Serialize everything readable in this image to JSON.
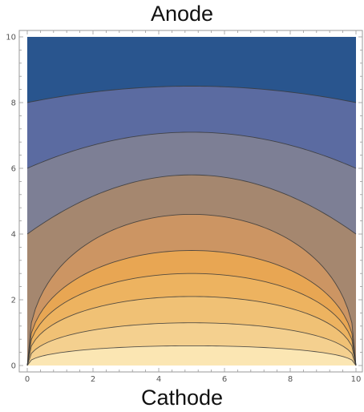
{
  "chart_data": {
    "type": "contour",
    "title": "Anode",
    "xlabel": "Cathode",
    "xlim": [
      0,
      10
    ],
    "ylim": [
      0,
      10
    ],
    "x_ticks": [
      0,
      2,
      4,
      6,
      8,
      10
    ],
    "y_ticks": [
      0,
      2,
      4,
      6,
      8,
      10
    ],
    "contour_levels": [
      {
        "y_at_edge": 8,
        "y_at_center": 8.5
      },
      {
        "y_at_edge": 6,
        "y_at_center": 7.1
      },
      {
        "y_at_edge": 4,
        "y_at_center": 5.8
      },
      {
        "y_at_edge": 0,
        "y_at_center": 4.6
      },
      {
        "y_at_edge": 0,
        "y_at_center": 3.5
      },
      {
        "y_at_edge": 0,
        "y_at_center": 2.8
      },
      {
        "y_at_edge": 0,
        "y_at_center": 2.1
      },
      {
        "y_at_edge": 0,
        "y_at_center": 1.3
      },
      {
        "y_at_edge": 0,
        "y_at_center": 0.6
      }
    ],
    "fill_colors": [
      "#29558e",
      "#5b6ba1",
      "#7d7f95",
      "#a5876f",
      "#cc9563",
      "#e8a653",
      "#edb360",
      "#f0c175",
      "#f4d08f",
      "#fbe6b3",
      "#fef4cf"
    ],
    "grid": false,
    "legend": "none"
  }
}
